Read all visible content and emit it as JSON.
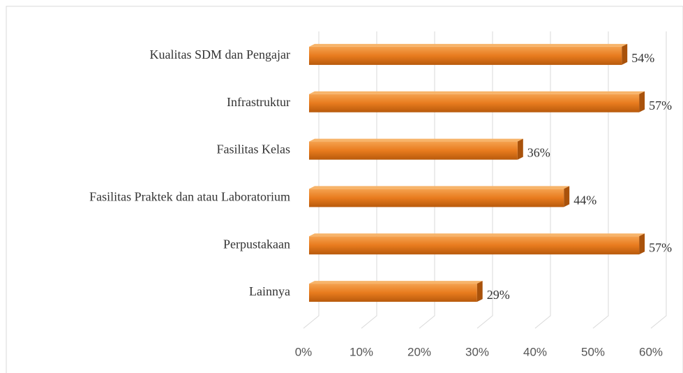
{
  "chart_data": {
    "type": "bar",
    "orientation": "horizontal",
    "categories": [
      "Kualitas SDM dan Pengajar",
      "Infrastruktur",
      "Fasilitas Kelas",
      "Fasilitas Praktek dan atau Laboratorium",
      "Perpustakaan",
      "Lainnya"
    ],
    "values": [
      54,
      57,
      36,
      44,
      57,
      29
    ],
    "value_labels": [
      "54%",
      "57%",
      "36%",
      "44%",
      "57%",
      "29%"
    ],
    "color": "#e87b1e",
    "xlim": [
      0,
      60
    ],
    "xticks": [
      {
        "value": 0,
        "label": "0%"
      },
      {
        "value": 10,
        "label": "10%"
      },
      {
        "value": 20,
        "label": "20%"
      },
      {
        "value": 30,
        "label": "30%"
      },
      {
        "value": 40,
        "label": "40%"
      },
      {
        "value": 50,
        "label": "50%"
      },
      {
        "value": 60,
        "label": "60%"
      }
    ],
    "grid": true
  }
}
